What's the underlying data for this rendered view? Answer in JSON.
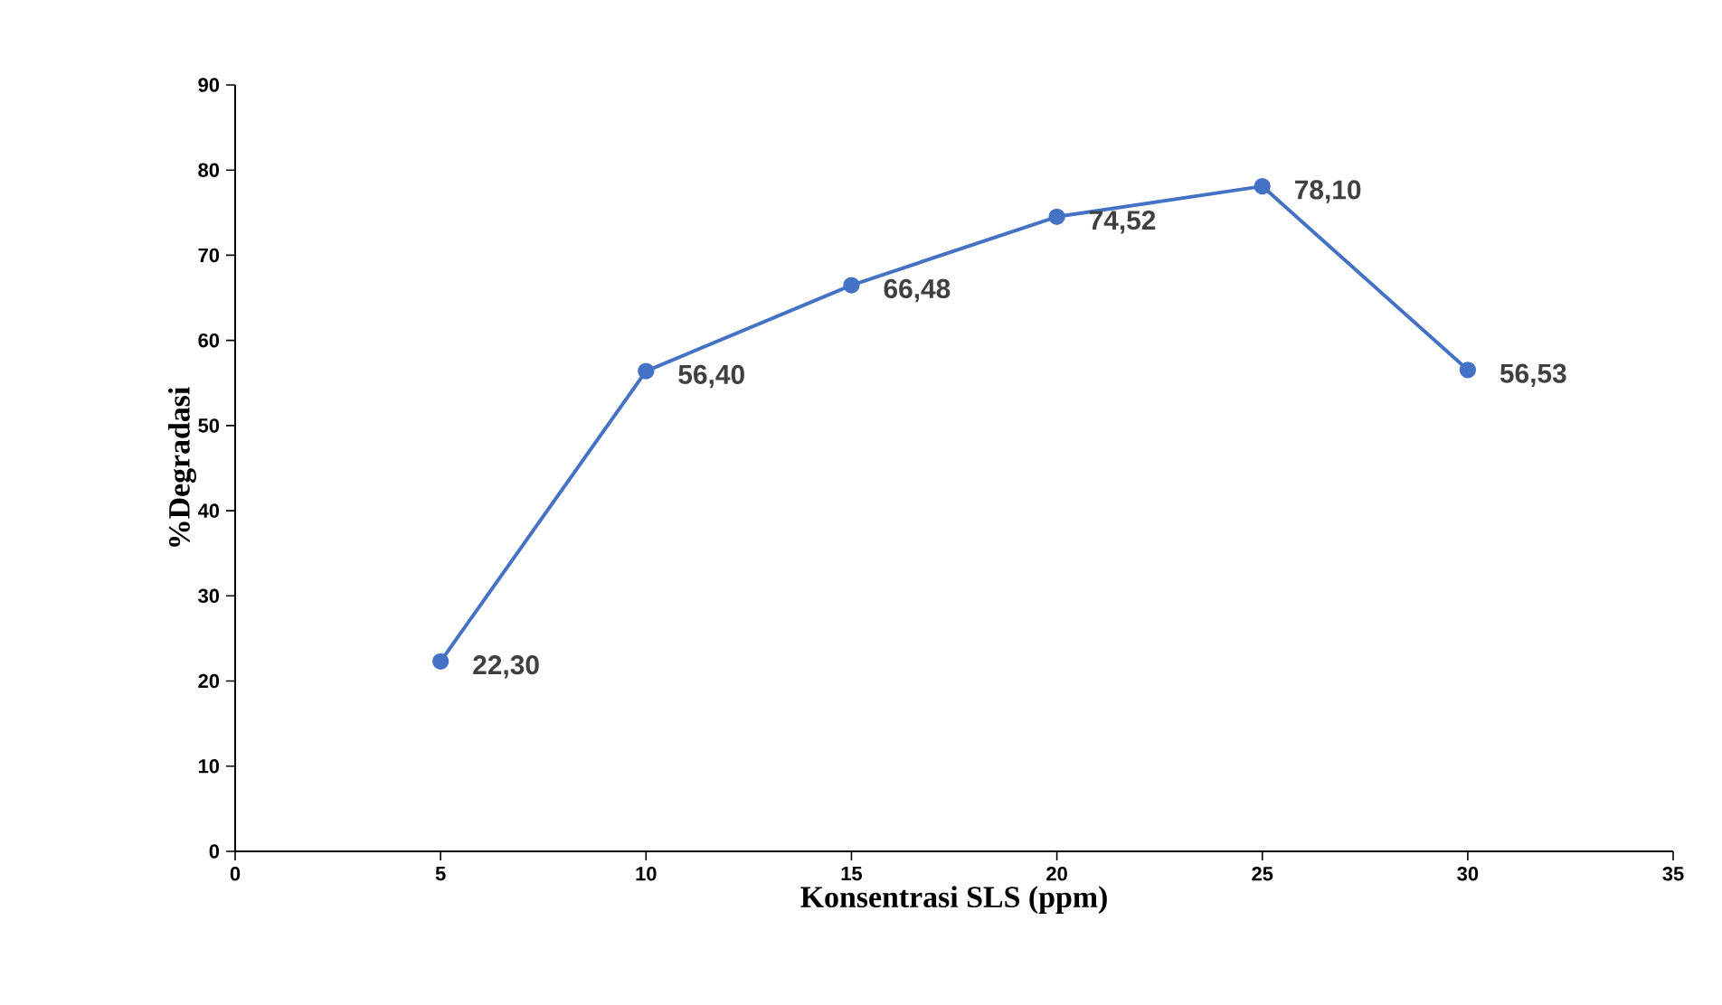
{
  "chart_data": {
    "type": "line",
    "xlabel": "Konsentrasi SLS (ppm)",
    "ylabel": "%Degradasi",
    "x": [
      5,
      10,
      15,
      20,
      25,
      30
    ],
    "values": [
      22.3,
      56.4,
      66.48,
      74.52,
      78.1,
      56.53
    ],
    "value_labels": [
      "22,30",
      "56,40",
      "66,48",
      "74,52",
      "78,10",
      "56,53"
    ],
    "color": "#4472c4",
    "marker": "circle",
    "line_style": "solid",
    "xlim": [
      0,
      35
    ],
    "xticks": [
      0,
      5,
      10,
      15,
      20,
      25,
      30,
      35
    ],
    "ylim": [
      0,
      90
    ],
    "yticks": [
      0,
      10,
      20,
      30,
      40,
      50,
      60,
      70,
      80,
      90
    ]
  }
}
